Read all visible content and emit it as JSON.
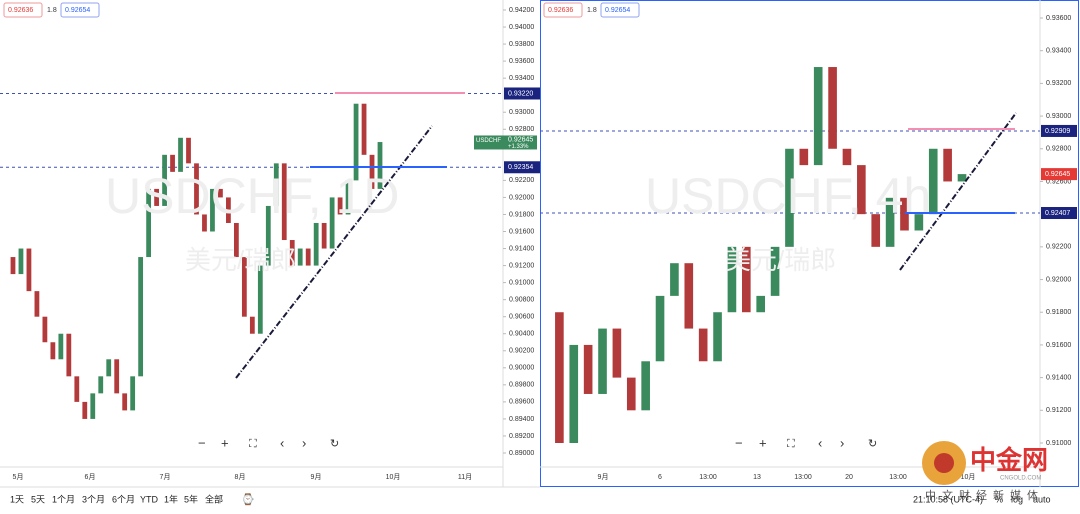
{
  "panels": [
    {
      "header": {
        "bid": 0.92636,
        "spread": 1.8,
        "ask": 0.92654
      },
      "watermark": "USDCHF, 1D",
      "watermark_name": "美元/瑞郎",
      "ylim": [
        0.89,
        0.942
      ],
      "yticks": [
        {
          "value": 0.942,
          "label": "0.94200"
        },
        {
          "value": 0.94,
          "label": "0.94000"
        },
        {
          "value": 0.938,
          "label": "0.93800"
        },
        {
          "value": 0.936,
          "label": "0.93600"
        },
        {
          "value": 0.934,
          "label": "0.93400"
        },
        {
          "value": 0.93,
          "label": "0.93000"
        },
        {
          "value": 0.928,
          "label": "0.92800"
        },
        {
          "value": 0.922,
          "label": "0.92200"
        },
        {
          "value": 0.92,
          "label": "0.92000"
        },
        {
          "value": 0.918,
          "label": "0.91800"
        },
        {
          "value": 0.916,
          "label": "0.91600"
        },
        {
          "value": 0.914,
          "label": "0.91400"
        },
        {
          "value": 0.912,
          "label": "0.91200"
        },
        {
          "value": 0.91,
          "label": "0.91000"
        },
        {
          "value": 0.908,
          "label": "0.90800"
        },
        {
          "value": 0.906,
          "label": "0.90600"
        },
        {
          "value": 0.904,
          "label": "0.90400"
        },
        {
          "value": 0.902,
          "label": "0.90200"
        },
        {
          "value": 0.9,
          "label": "0.90000"
        },
        {
          "value": 0.898,
          "label": "0.89800"
        },
        {
          "value": 0.896,
          "label": "0.89600"
        },
        {
          "value": 0.894,
          "label": "0.89400"
        },
        {
          "value": 0.892,
          "label": "0.89200"
        },
        {
          "value": 0.89,
          "label": "0.89000"
        }
      ],
      "x_labels": [
        "5月",
        "6月",
        "7月",
        "8月",
        "9月",
        "10月",
        "11月"
      ],
      "closes": [
        0.913,
        0.911,
        0.914,
        0.909,
        0.906,
        0.903,
        0.901,
        0.904,
        0.899,
        0.896,
        0.894,
        0.897,
        0.899,
        0.901,
        0.897,
        0.895,
        0.899,
        0.913,
        0.921,
        0.919,
        0.925,
        0.923,
        0.927,
        0.924,
        0.918,
        0.916,
        0.921,
        0.92,
        0.917,
        0.913,
        0.906,
        0.904,
        0.912,
        0.919,
        0.924,
        0.915,
        0.912,
        0.914,
        0.912,
        0.917,
        0.914,
        0.92,
        0.918,
        0.922,
        0.931,
        0.925,
        0.921,
        0.9265
      ],
      "levels": [
        {
          "value": 0.9322,
          "label": "0.93220"
        },
        {
          "value": 0.92354,
          "label": "0.92354"
        }
      ],
      "last": 0.92645,
      "symbol": "USDCHF",
      "change": "+1.33%"
    },
    {
      "header": {
        "bid": 0.92636,
        "spread": 1.8,
        "ask": 0.92654
      },
      "watermark": "USDCHF, 4h",
      "watermark_name": "美元/瑞郎",
      "ylim": [
        0.91,
        0.936
      ],
      "yticks": [
        {
          "value": 0.936,
          "label": "0.93600"
        },
        {
          "value": 0.934,
          "label": "0.93400"
        },
        {
          "value": 0.932,
          "label": "0.93200"
        },
        {
          "value": 0.93,
          "label": "0.93000"
        },
        {
          "value": 0.928,
          "label": "0.92800"
        },
        {
          "value": 0.926,
          "label": "0.92600"
        },
        {
          "value": 0.922,
          "label": "0.92200"
        },
        {
          "value": 0.92,
          "label": "0.92000"
        },
        {
          "value": 0.918,
          "label": "0.91800"
        },
        {
          "value": 0.916,
          "label": "0.91600"
        },
        {
          "value": 0.914,
          "label": "0.91400"
        },
        {
          "value": 0.912,
          "label": "0.91200"
        },
        {
          "value": 0.91,
          "label": "0.91000"
        }
      ],
      "x_labels": [
        "9月",
        "6",
        "13:00",
        "13",
        "13:00",
        "20",
        "13:00",
        "10月"
      ],
      "closes": [
        0.918,
        0.91,
        0.916,
        0.913,
        0.917,
        0.914,
        0.912,
        0.915,
        0.919,
        0.921,
        0.917,
        0.915,
        0.918,
        0.922,
        0.918,
        0.919,
        0.922,
        0.928,
        0.927,
        0.933,
        0.928,
        0.927,
        0.924,
        0.922,
        0.925,
        0.923,
        0.924,
        0.928,
        0.926,
        0.92645
      ],
      "levels": [
        {
          "value": 0.92909,
          "label": "0.92909"
        },
        {
          "value": 0.92407,
          "label": "0.92407"
        }
      ],
      "last": 0.92645
    }
  ],
  "toolbar": {
    "ranges": [
      "1天",
      "5天",
      "1个月",
      "3个月",
      "6个月",
      "YTD",
      "1年",
      "5年",
      "全部"
    ],
    "time": "21:10:58 (UTC-4)",
    "percent": "%",
    "log": "log",
    "auto": "auto"
  },
  "logo": {
    "name": "中金网",
    "site": "CNGOLD.COM",
    "slogan": "中文财经新媒体"
  }
}
